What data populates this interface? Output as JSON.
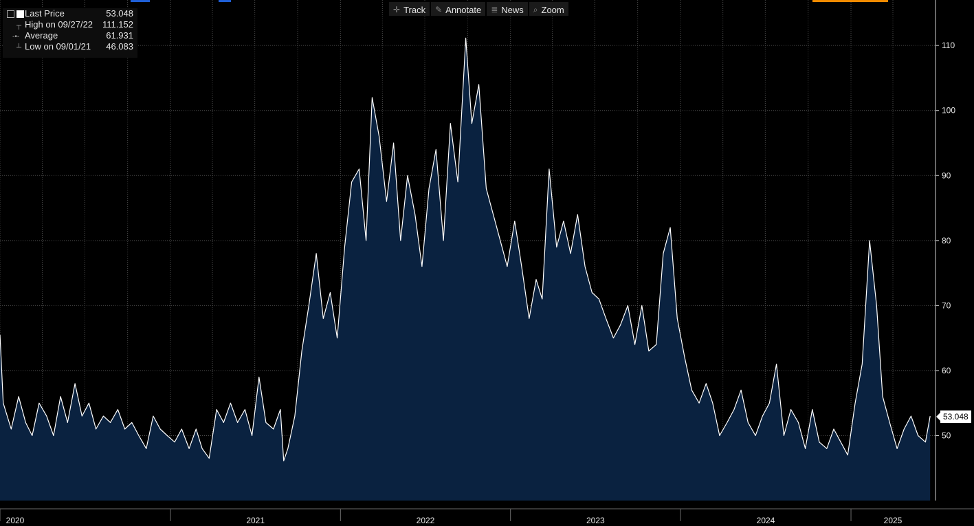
{
  "legend": {
    "rows": [
      {
        "label": "Last Price",
        "value": "53.048",
        "icon": "white-square-icon"
      },
      {
        "label": "High on 09/27/22",
        "value": "111.152",
        "icon": "high-marker-icon"
      },
      {
        "label": "Average",
        "value": "61.931",
        "icon": "average-line-icon"
      },
      {
        "label": "Low on 09/01/21",
        "value": "46.083",
        "icon": "low-marker-icon"
      }
    ]
  },
  "toolbar": {
    "track": "Track",
    "annotate": "Annotate",
    "news": "News",
    "zoom": "Zoom"
  },
  "last_price_tag": "53.048",
  "colors": {
    "background": "#000000",
    "area_fill": "#0a2240",
    "line": "#ffffff",
    "grid": "#4a4a4a",
    "accent_blue": "#1f5fd6",
    "accent_orange": "#f08a00"
  },
  "chart_data": {
    "type": "area",
    "title": "",
    "xlabel": "",
    "ylabel": "",
    "ylim": [
      40,
      117
    ],
    "xlim": [
      "2020-01-01",
      "2025-06-30"
    ],
    "y_ticks": [
      50,
      60,
      70,
      80,
      90,
      100,
      110
    ],
    "x_tick_labels": [
      "2020",
      "2021",
      "2022",
      "2023",
      "2024",
      "2025"
    ],
    "x_tick_dates": [
      "2020-01-01",
      "2021-01-01",
      "2022-01-01",
      "2023-01-01",
      "2024-01-01",
      "2025-01-01"
    ],
    "grid": true,
    "legend_position": "top-left",
    "series": [
      {
        "name": "Last Price",
        "x": [
          "2020-01-01",
          "2020-01-08",
          "2020-01-25",
          "2020-02-10",
          "2020-02-25",
          "2020-03-10",
          "2020-03-25",
          "2020-04-10",
          "2020-04-25",
          "2020-05-10",
          "2020-05-25",
          "2020-06-10",
          "2020-06-25",
          "2020-07-10",
          "2020-07-25",
          "2020-08-10",
          "2020-08-25",
          "2020-09-10",
          "2020-09-25",
          "2020-10-10",
          "2020-10-25",
          "2020-11-10",
          "2020-11-25",
          "2020-12-10",
          "2020-12-25",
          "2021-01-10",
          "2021-01-25",
          "2021-02-10",
          "2021-02-25",
          "2021-03-10",
          "2021-03-25",
          "2021-04-10",
          "2021-04-25",
          "2021-05-10",
          "2021-05-25",
          "2021-06-10",
          "2021-06-25",
          "2021-07-10",
          "2021-07-25",
          "2021-08-10",
          "2021-08-25",
          "2021-09-01",
          "2021-09-10",
          "2021-09-25",
          "2021-10-10",
          "2021-10-25",
          "2021-11-10",
          "2021-11-25",
          "2021-12-10",
          "2021-12-25",
          "2022-01-10",
          "2022-01-25",
          "2022-02-10",
          "2022-02-25",
          "2022-03-10",
          "2022-03-25",
          "2022-04-10",
          "2022-04-25",
          "2022-05-10",
          "2022-05-25",
          "2022-06-10",
          "2022-06-25",
          "2022-07-10",
          "2022-07-25",
          "2022-08-10",
          "2022-08-25",
          "2022-09-10",
          "2022-09-27",
          "2022-10-10",
          "2022-10-25",
          "2022-11-10",
          "2022-11-25",
          "2022-12-10",
          "2022-12-25",
          "2023-01-10",
          "2023-01-25",
          "2023-02-10",
          "2023-02-25",
          "2023-03-10",
          "2023-03-25",
          "2023-04-10",
          "2023-04-25",
          "2023-05-10",
          "2023-05-25",
          "2023-06-10",
          "2023-06-25",
          "2023-07-10",
          "2023-07-25",
          "2023-08-10",
          "2023-08-25",
          "2023-09-10",
          "2023-09-25",
          "2023-10-10",
          "2023-10-25",
          "2023-11-10",
          "2023-11-25",
          "2023-12-10",
          "2023-12-25",
          "2024-01-10",
          "2024-01-25",
          "2024-02-10",
          "2024-02-25",
          "2024-03-10",
          "2024-03-25",
          "2024-04-10",
          "2024-04-25",
          "2024-05-10",
          "2024-05-25",
          "2024-06-10",
          "2024-06-25",
          "2024-07-10",
          "2024-07-25",
          "2024-08-10",
          "2024-08-25",
          "2024-09-10",
          "2024-09-25",
          "2024-10-10",
          "2024-10-25",
          "2024-11-10",
          "2024-11-25",
          "2024-12-10",
          "2024-12-25",
          "2025-01-10",
          "2025-01-25",
          "2025-02-10",
          "2025-02-25",
          "2025-03-10",
          "2025-03-25",
          "2025-04-10",
          "2025-04-25",
          "2025-05-10",
          "2025-05-25",
          "2025-06-10",
          "2025-06-20"
        ],
        "values": [
          65.5,
          55,
          51,
          56,
          52,
          50,
          55,
          53,
          50,
          56,
          52,
          58,
          53,
          55,
          51,
          53,
          52,
          54,
          51,
          52,
          50,
          48,
          53,
          51,
          50,
          49,
          51,
          48,
          51,
          48,
          46.5,
          54,
          52,
          55,
          52,
          54,
          50,
          59,
          52,
          51,
          54,
          46.1,
          48,
          53,
          63,
          70,
          78,
          68,
          72,
          65,
          79,
          89,
          91,
          80,
          102,
          96,
          86,
          95,
          80,
          90,
          84,
          76,
          88,
          94,
          80,
          98,
          89,
          111.15,
          98,
          104,
          88,
          84,
          80,
          76,
          83,
          76,
          68,
          74,
          71,
          91,
          79,
          83,
          78,
          84,
          76,
          72,
          71,
          68,
          65,
          67,
          70,
          64,
          70,
          63,
          64,
          78,
          82,
          68,
          62,
          57,
          55,
          58,
          55,
          50,
          52,
          54,
          57,
          52,
          50,
          53,
          55,
          61,
          50,
          54,
          52,
          48,
          54,
          49,
          48,
          51,
          49,
          47,
          55,
          61,
          80,
          70,
          56,
          52,
          48,
          51,
          53,
          50,
          49,
          53
        ]
      }
    ],
    "last_value": 53.048
  }
}
